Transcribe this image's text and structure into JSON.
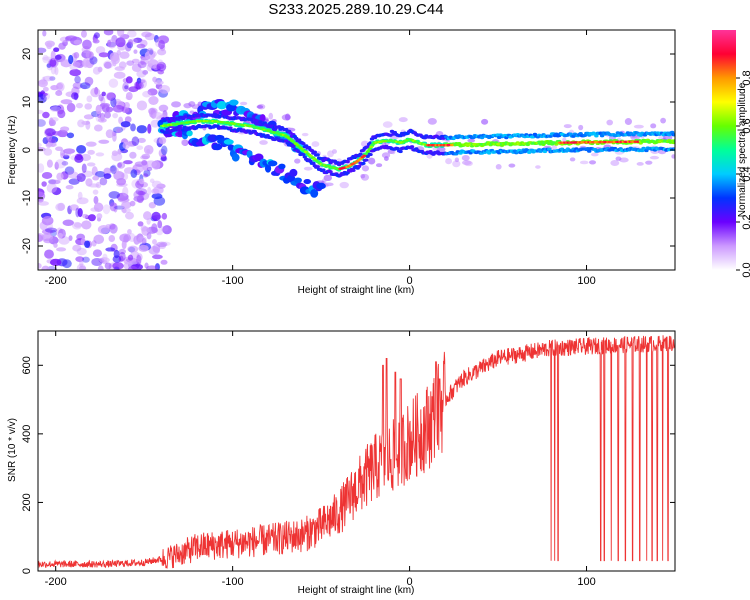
{
  "title": "S233.2025.289.10.29.C44",
  "chart_data": [
    {
      "type": "heatmap",
      "name": "spectrogram",
      "xlabel": "Height of straight line (km)",
      "ylabel": "Frequency (Hz)",
      "xlim": [
        -210,
        150
      ],
      "ylim": [
        -25,
        25
      ],
      "xticks": [
        -200,
        -100,
        0,
        100
      ],
      "yticks": [
        -20,
        -10,
        0,
        10,
        20
      ],
      "colorbar": {
        "label": "Normalized spectral amplitude",
        "range": [
          0.0,
          1.0
        ],
        "ticks": [
          0.0,
          0.2,
          0.4,
          0.6,
          0.8
        ],
        "tick_labels": [
          "0.0",
          "0.2",
          "0.4",
          "0.6",
          "0.8"
        ],
        "colors": [
          "#ffffff",
          "#cc99ff",
          "#6a00ff",
          "#0033ff",
          "#00ccff",
          "#00ff99",
          "#66ff00",
          "#ffff00",
          "#ff9900",
          "#ff0033",
          "#ff3399"
        ]
      },
      "ridge": {
        "x": [
          -140,
          -130,
          -120,
          -110,
          -100,
          -90,
          -80,
          -70,
          -60,
          -50,
          -40,
          -35,
          -30,
          -25,
          -20,
          -15,
          -10,
          -5,
          0,
          5,
          10,
          20,
          40,
          60,
          80,
          100,
          120,
          150
        ],
        "y": [
          5,
          5.5,
          6,
          6,
          5.5,
          5,
          4,
          3,
          0,
          -3,
          -4,
          -3.5,
          -2.5,
          -1,
          1.5,
          1.8,
          2,
          1.5,
          2.3,
          1.5,
          1,
          1,
          1.2,
          1.3,
          1.5,
          1.6,
          1.7,
          1.8
        ]
      },
      "upper_branch": {
        "x": [
          -140,
          -125,
          -110,
          -100,
          -90,
          -80,
          -70,
          -60
        ],
        "y": [
          5,
          7,
          9,
          9,
          7,
          5,
          3,
          0
        ]
      },
      "lower_branch": {
        "x": [
          -140,
          -130,
          -120,
          -110,
          -100,
          -90,
          -80,
          -70,
          -60,
          -55,
          -50
        ],
        "y": [
          5,
          4,
          2,
          2,
          0,
          -2,
          -3.5,
          -5,
          -7,
          -8,
          -8
        ]
      },
      "noise_region_x": [
        -210,
        -137
      ]
    },
    {
      "type": "line",
      "name": "snr",
      "xlabel": "Height of straight line (km)",
      "ylabel": "SNR (10 * v/v)",
      "xlim": [
        -210,
        150
      ],
      "ylim": [
        0,
        700
      ],
      "xticks": [
        -200,
        -100,
        0,
        100
      ],
      "yticks": [
        0,
        200,
        400,
        600
      ],
      "color": "#ee3333",
      "trend": {
        "x": [
          -210,
          -170,
          -150,
          -140,
          -130,
          -120,
          -100,
          -80,
          -60,
          -50,
          -40,
          -30,
          -20,
          -10,
          0,
          10,
          20,
          30,
          50,
          80,
          120,
          150
        ],
        "y": [
          20,
          20,
          25,
          35,
          50,
          70,
          80,
          90,
          105,
          130,
          170,
          240,
          300,
          330,
          380,
          420,
          500,
          560,
          620,
          650,
          660,
          665
        ]
      },
      "dropouts_x": [
        80,
        82,
        84,
        108,
        110,
        114,
        118,
        122,
        126,
        130,
        134,
        137,
        140,
        143,
        146
      ],
      "dropout_y": 30,
      "spikes": [
        {
          "x": -15,
          "y": 600
        },
        {
          "x": -13,
          "y": 620
        },
        {
          "x": -8,
          "y": 580
        },
        {
          "x": -5,
          "y": 560
        },
        {
          "x": 15,
          "y": 610
        },
        {
          "x": 17,
          "y": 560
        }
      ]
    }
  ]
}
